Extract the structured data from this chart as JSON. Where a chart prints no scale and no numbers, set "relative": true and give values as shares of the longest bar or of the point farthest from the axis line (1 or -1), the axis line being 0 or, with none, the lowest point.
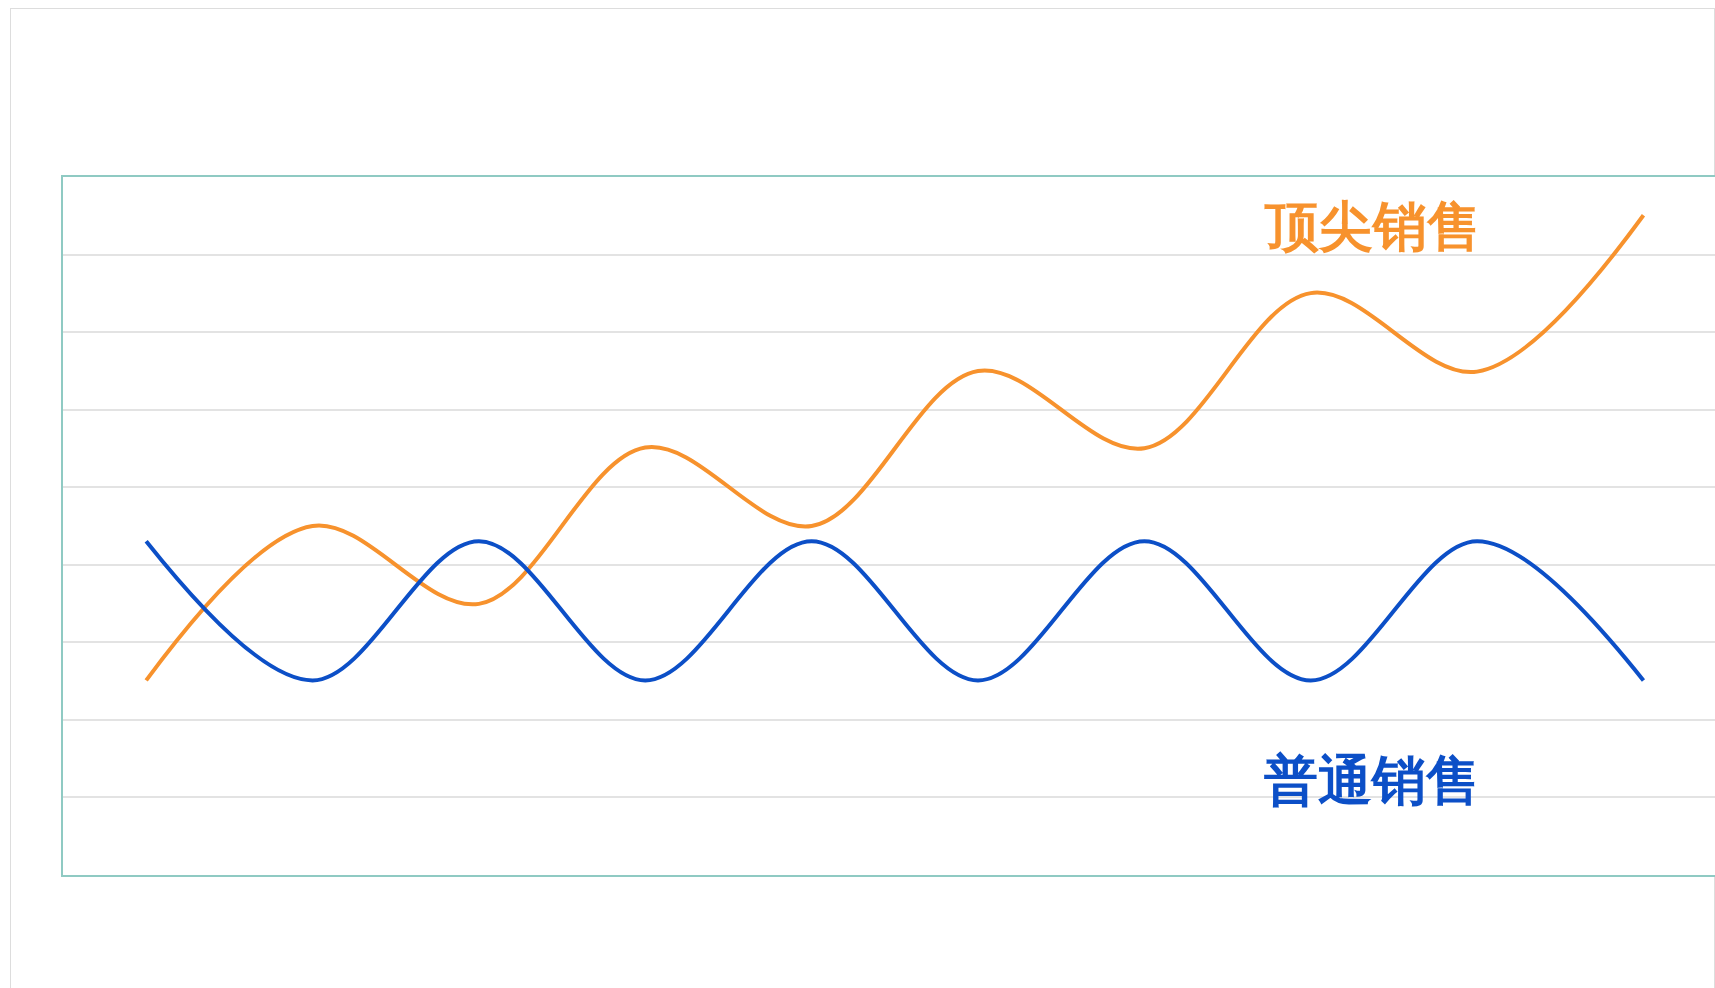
{
  "chart_data": {
    "type": "line",
    "relative": true,
    "grid": "y",
    "marker": "none",
    "line_style": "solid",
    "categories": [
      null,
      null,
      null,
      null,
      null,
      null,
      null,
      null,
      null,
      null
    ],
    "series": [
      {
        "name": "顶尖销售",
        "color": "#f7922d",
        "values": [
          0.295,
          0.529,
          0.411,
          0.648,
          0.529,
          0.764,
          0.647,
          0.882,
          0.763,
          1
        ]
      },
      {
        "name": "普通销售",
        "color": "#0c4fc7",
        "values": [
          0.506,
          0.295,
          0.506,
          0.295,
          0.506,
          0.295,
          0.506,
          0.295,
          0.506,
          0.295
        ]
      }
    ]
  }
}
